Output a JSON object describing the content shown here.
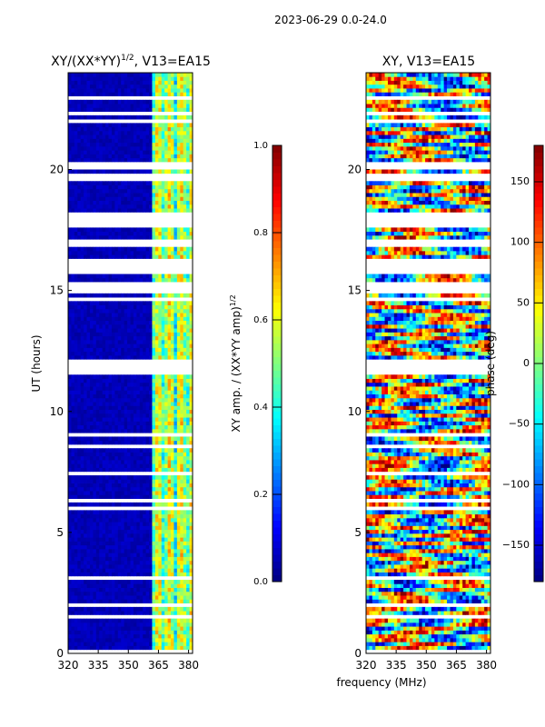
{
  "chart_data": {
    "suptitle": "2023-06-29 0.0-24.0",
    "shared_xlabel": "frequency (MHz)",
    "panels": [
      {
        "type": "heatmap",
        "title_prefix": "XY/(XX*YY)",
        "title_exp": "1/2",
        "title_suffix": ", V13=EA15",
        "ylabel": "UT (hours)",
        "xlim": [
          320,
          382
        ],
        "ylim": [
          0,
          24
        ],
        "xticks": [
          {
            "value": 320,
            "label": "320"
          },
          {
            "value": 335,
            "label": "335"
          },
          {
            "value": 350,
            "label": "350"
          },
          {
            "value": 365,
            "label": "365"
          },
          {
            "value": 380,
            "label": "380"
          }
        ],
        "yticks": [
          {
            "value": 0,
            "label": "0"
          },
          {
            "value": 5,
            "label": "5"
          },
          {
            "value": 10,
            "label": "10"
          },
          {
            "value": 15,
            "label": "15"
          },
          {
            "value": 20,
            "label": "20"
          }
        ],
        "colorbar": {
          "label_prefix": "XY amp. / (XX*YY amp)",
          "label_exp": "1/2",
          "range": [
            0.0,
            1.0
          ],
          "ticks": [
            {
              "value": 0.0,
              "label": "0.0"
            },
            {
              "value": 0.2,
              "label": "0.2"
            },
            {
              "value": 0.4,
              "label": "0.4"
            },
            {
              "value": 0.6,
              "label": "0.6"
            },
            {
              "value": 0.8,
              "label": "0.8"
            },
            {
              "value": 1.0,
              "label": "1.0"
            }
          ]
        }
      },
      {
        "type": "heatmap",
        "title_prefix": "XY, V13=EA15",
        "title_exp": "",
        "title_suffix": "",
        "ylabel": "",
        "xlim": [
          320,
          382
        ],
        "ylim": [
          0,
          24
        ],
        "xticks": [
          {
            "value": 320,
            "label": "320"
          },
          {
            "value": 335,
            "label": "335"
          },
          {
            "value": 350,
            "label": "350"
          },
          {
            "value": 365,
            "label": "365"
          },
          {
            "value": 380,
            "label": "380"
          }
        ],
        "yticks": [
          {
            "value": 0,
            "label": "0"
          },
          {
            "value": 5,
            "label": "5"
          },
          {
            "value": 10,
            "label": "10"
          },
          {
            "value": 15,
            "label": "15"
          },
          {
            "value": 20,
            "label": "20"
          }
        ],
        "colorbar": {
          "label_prefix": "phase (deg)",
          "label_exp": "",
          "range": [
            -180,
            180
          ],
          "ticks": [
            {
              "value": -150,
              "label": "−150"
            },
            {
              "value": -100,
              "label": "−100"
            },
            {
              "value": -50,
              "label": "−50"
            },
            {
              "value": 0,
              "label": "0"
            },
            {
              "value": 50,
              "label": "50"
            },
            {
              "value": 100,
              "label": "100"
            },
            {
              "value": 150,
              "label": "150"
            }
          ]
        }
      }
    ],
    "data_gaps_ut_hours": [
      [
        17.6,
        18.2
      ],
      [
        16.8,
        17.1
      ],
      [
        15.8,
        16.3
      ],
      [
        15.0,
        15.3
      ],
      [
        11.5,
        12.1
      ],
      [
        6.2,
        6.4
      ],
      [
        5.9,
        6.05
      ],
      [
        9.0,
        9.1
      ],
      [
        4.0,
        4.05
      ],
      [
        1.5,
        1.6
      ],
      [
        2.0,
        2.05
      ],
      [
        21.4,
        21.5
      ],
      [
        19.6,
        19.7
      ]
    ],
    "amp_bright_band_mhz": [
      362,
      382
    ]
  }
}
